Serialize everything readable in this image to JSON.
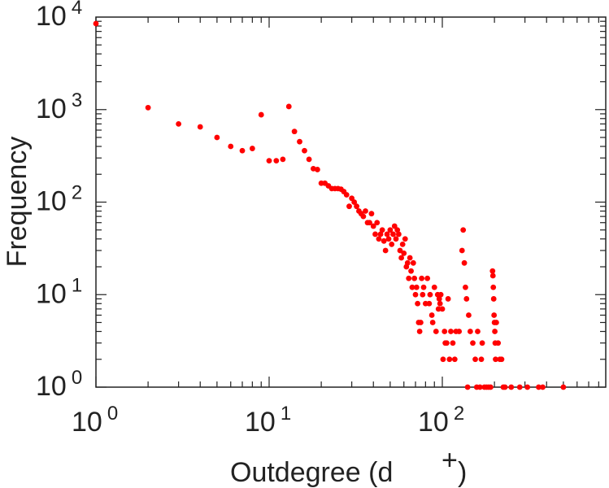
{
  "chart_data": {
    "type": "scatter",
    "title": "",
    "xlabel": "Outdegree (d",
    "xlabel_superscript": "+",
    "xlabel_close": ")",
    "ylabel": "Frequency",
    "x_scale": "log",
    "y_scale": "log",
    "xlim": [
      1,
      1000
    ],
    "ylim": [
      1,
      10000
    ],
    "grid": false,
    "marker_color": "#ff0000",
    "x_ticks": [
      {
        "base": "10",
        "exp": "0"
      },
      {
        "base": "10",
        "exp": "1"
      },
      {
        "base": "10",
        "exp": "2"
      }
    ],
    "y_ticks": [
      {
        "base": "10",
        "exp": "0"
      },
      {
        "base": "10",
        "exp": "1"
      },
      {
        "base": "10",
        "exp": "2"
      },
      {
        "base": "10",
        "exp": "3"
      },
      {
        "base": "10",
        "exp": "4"
      }
    ],
    "points": [
      [
        1,
        8500
      ],
      [
        2,
        1050
      ],
      [
        3,
        700
      ],
      [
        4,
        650
      ],
      [
        5,
        500
      ],
      [
        6,
        400
      ],
      [
        7,
        360
      ],
      [
        8,
        380
      ],
      [
        9,
        880
      ],
      [
        10,
        280
      ],
      [
        11,
        280
      ],
      [
        12,
        290
      ],
      [
        13,
        1080
      ],
      [
        14,
        580
      ],
      [
        15,
        450
      ],
      [
        16,
        360
      ],
      [
        17,
        290
      ],
      [
        18,
        230
      ],
      [
        19,
        225
      ],
      [
        20,
        160
      ],
      [
        21,
        160
      ],
      [
        22,
        150
      ],
      [
        23,
        140
      ],
      [
        24,
        140
      ],
      [
        25,
        140
      ],
      [
        26,
        138
      ],
      [
        27,
        130
      ],
      [
        28,
        120
      ],
      [
        29,
        90
      ],
      [
        30,
        110
      ],
      [
        31,
        100
      ],
      [
        32,
        90
      ],
      [
        33,
        80
      ],
      [
        34,
        75
      ],
      [
        35,
        70
      ],
      [
        36,
        80
      ],
      [
        37,
        60
      ],
      [
        38,
        60
      ],
      [
        39,
        75
      ],
      [
        40,
        55
      ],
      [
        41,
        45
      ],
      [
        42,
        60
      ],
      [
        43,
        40
      ],
      [
        44,
        45
      ],
      [
        45,
        50
      ],
      [
        46,
        38
      ],
      [
        47,
        30
      ],
      [
        48,
        45
      ],
      [
        49,
        40
      ],
      [
        50,
        50
      ],
      [
        51,
        35
      ],
      [
        52,
        45
      ],
      [
        53,
        55
      ],
      [
        54,
        40
      ],
      [
        55,
        50
      ],
      [
        56,
        45
      ],
      [
        57,
        30
      ],
      [
        58,
        25
      ],
      [
        59,
        35
      ],
      [
        60,
        28
      ],
      [
        61,
        40
      ],
      [
        62,
        20
      ],
      [
        63,
        22
      ],
      [
        64,
        15
      ],
      [
        65,
        25
      ],
      [
        66,
        18
      ],
      [
        67,
        12
      ],
      [
        68,
        22
      ],
      [
        69,
        15
      ],
      [
        70,
        10
      ],
      [
        71,
        12
      ],
      [
        72,
        8
      ],
      [
        73,
        5
      ],
      [
        74,
        4
      ],
      [
        75,
        5
      ],
      [
        76,
        15
      ],
      [
        77,
        10
      ],
      [
        78,
        12
      ],
      [
        80,
        8
      ],
      [
        82,
        15
      ],
      [
        84,
        8
      ],
      [
        85,
        10
      ],
      [
        87,
        6
      ],
      [
        88,
        5
      ],
      [
        90,
        12
      ],
      [
        92,
        4
      ],
      [
        94,
        10
      ],
      [
        95,
        7
      ],
      [
        96,
        9
      ],
      [
        97,
        8
      ],
      [
        98,
        10
      ],
      [
        100,
        7
      ],
      [
        101,
        2
      ],
      [
        103,
        4
      ],
      [
        104,
        3
      ],
      [
        106,
        3
      ],
      [
        108,
        9
      ],
      [
        110,
        2
      ],
      [
        112,
        4
      ],
      [
        115,
        3
      ],
      [
        118,
        2
      ],
      [
        120,
        4
      ],
      [
        125,
        4
      ],
      [
        130,
        30
      ],
      [
        132,
        50
      ],
      [
        134,
        22
      ],
      [
        136,
        12
      ],
      [
        138,
        9
      ],
      [
        140,
        1
      ],
      [
        142,
        6
      ],
      [
        145,
        4
      ],
      [
        150,
        3
      ],
      [
        155,
        2
      ],
      [
        158,
        1
      ],
      [
        160,
        4
      ],
      [
        165,
        1
      ],
      [
        168,
        2
      ],
      [
        170,
        3
      ],
      [
        175,
        1
      ],
      [
        180,
        1
      ],
      [
        185,
        1
      ],
      [
        190,
        1
      ],
      [
        195,
        18
      ],
      [
        196,
        16
      ],
      [
        197,
        12
      ],
      [
        198,
        9
      ],
      [
        199,
        6
      ],
      [
        200,
        5
      ],
      [
        201,
        4
      ],
      [
        202,
        3
      ],
      [
        203,
        2
      ],
      [
        205,
        5
      ],
      [
        210,
        3
      ],
      [
        215,
        2
      ],
      [
        220,
        2
      ],
      [
        225,
        1
      ],
      [
        230,
        1
      ],
      [
        250,
        1
      ],
      [
        280,
        1
      ],
      [
        310,
        1
      ],
      [
        360,
        1
      ],
      [
        380,
        1
      ],
      [
        500,
        1
      ]
    ]
  }
}
